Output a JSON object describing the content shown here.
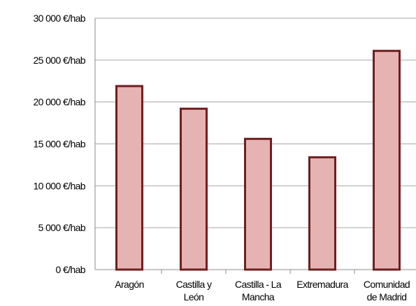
{
  "chart_data": {
    "type": "bar",
    "categories": [
      "Aragón",
      "Castilla y\nLeón",
      "Castilla - La\nMancha",
      "Extremadura",
      "Comunidad\nde Madrid"
    ],
    "values": [
      21900,
      19200,
      15600,
      13400,
      26100
    ],
    "color": "#e6b3b3",
    "edge_color": "#6e1f1f",
    "ylim": [
      0,
      30000
    ],
    "yticks": [
      {
        "value": 0,
        "label": "0 €/hab"
      },
      {
        "value": 5000,
        "label": "5 000 €/hab"
      },
      {
        "value": 10000,
        "label": "10 000 €/hab"
      },
      {
        "value": 15000,
        "label": "15 000 €/hab"
      },
      {
        "value": 20000,
        "label": "20 000 €/hab"
      },
      {
        "value": 25000,
        "label": "25 000 €/hab"
      },
      {
        "value": 30000,
        "label": "30 000 €/hab"
      }
    ],
    "grid": true
  }
}
